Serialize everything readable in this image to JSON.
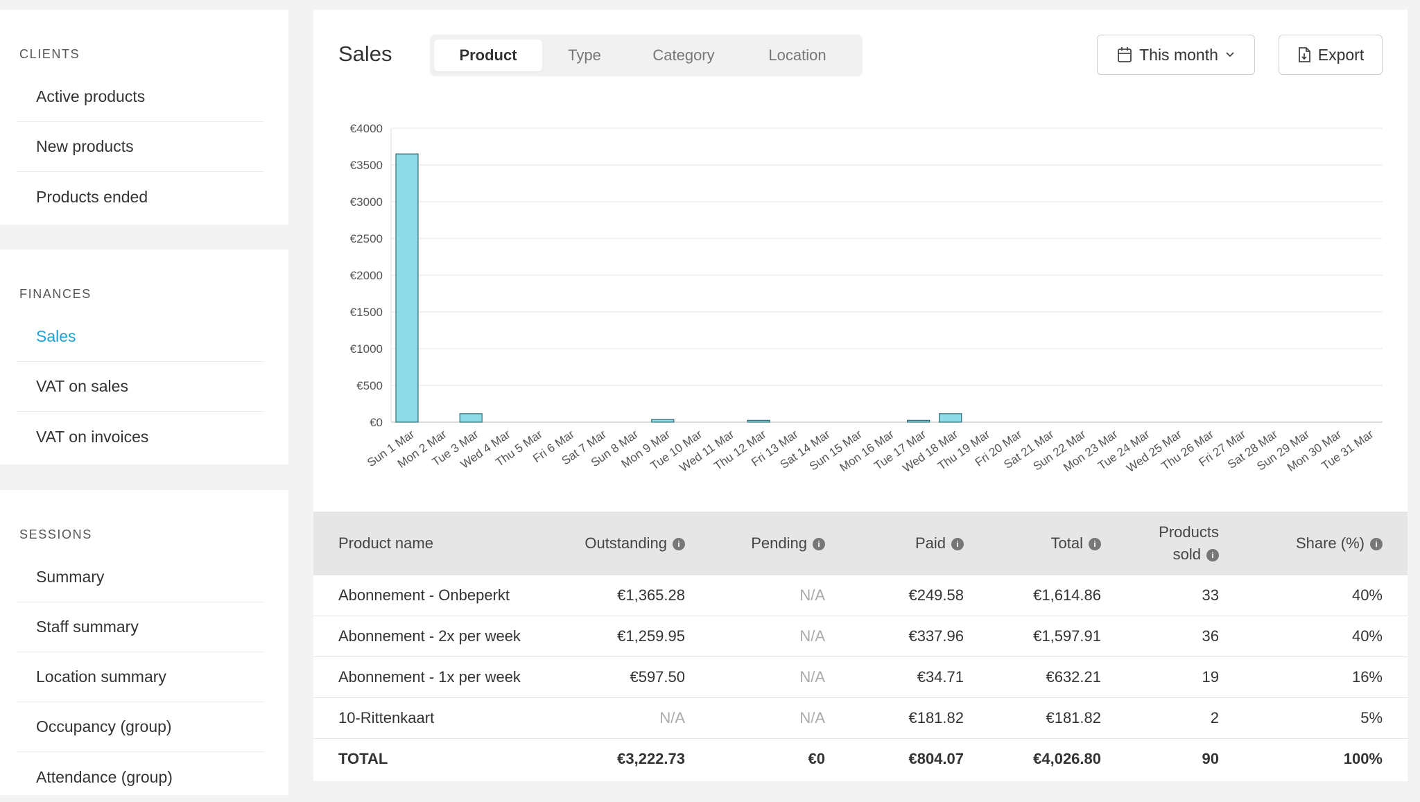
{
  "sidebar": {
    "clients": {
      "title": "CLIENTS",
      "items": [
        {
          "label": "Active products"
        },
        {
          "label": "New products"
        },
        {
          "label": "Products ended"
        }
      ]
    },
    "finances": {
      "title": "FINANCES",
      "items": [
        {
          "label": "Sales",
          "active": true
        },
        {
          "label": "VAT on sales"
        },
        {
          "label": "VAT on invoices"
        }
      ]
    },
    "sessions": {
      "title": "SESSIONS",
      "items": [
        {
          "label": "Summary"
        },
        {
          "label": "Staff summary"
        },
        {
          "label": "Location summary"
        },
        {
          "label": "Occupancy (group)"
        },
        {
          "label": "Attendance (group)"
        }
      ]
    }
  },
  "header": {
    "title": "Sales",
    "tabs": [
      {
        "label": "Product",
        "active": true
      },
      {
        "label": "Type"
      },
      {
        "label": "Category"
      },
      {
        "label": "Location"
      }
    ],
    "period_button": {
      "label": "This month",
      "icon": "calendar-icon",
      "caret": "chevron-down-icon"
    },
    "export_button": {
      "label": "Export",
      "icon": "file-download-icon"
    }
  },
  "colors": {
    "accent": "#1aa3d9",
    "bar_fill": "#8fdbe8",
    "bar_stroke": "#2b6d78"
  },
  "chart_data": {
    "type": "bar",
    "title": "",
    "xlabel": "",
    "ylabel": "",
    "ylim": [
      0,
      4000
    ],
    "yticks": [
      "€0",
      "€500",
      "€1000",
      "€1500",
      "€2000",
      "€2500",
      "€3000",
      "€3500",
      "€4000"
    ],
    "grid": true,
    "categories": [
      "Sun 1 Mar",
      "Mon 2 Mar",
      "Tue 3 Mar",
      "Wed 4 Mar",
      "Thu 5 Mar",
      "Fri 6 Mar",
      "Sat 7 Mar",
      "Sun 8 Mar",
      "Mon 9 Mar",
      "Tue 10 Mar",
      "Wed 11 Mar",
      "Thu 12 Mar",
      "Fri 13 Mar",
      "Sat 14 Mar",
      "Sun 15 Mar",
      "Mon 16 Mar",
      "Tue 17 Mar",
      "Wed 18 Mar",
      "Thu 19 Mar",
      "Fri 20 Mar",
      "Sat 21 Mar",
      "Sun 22 Mar",
      "Mon 23 Mar",
      "Tue 24 Mar",
      "Wed 25 Mar",
      "Thu 26 Mar",
      "Fri 27 Mar",
      "Sat 28 Mar",
      "Sun 29 Mar",
      "Mon 30 Mar",
      "Tue 31 Mar"
    ],
    "values": [
      3650,
      0,
      115,
      0,
      0,
      0,
      0,
      0,
      35,
      0,
      0,
      25,
      0,
      0,
      0,
      0,
      25,
      115,
      0,
      0,
      0,
      0,
      0,
      0,
      0,
      0,
      0,
      0,
      0,
      0,
      0
    ]
  },
  "table": {
    "headers": [
      {
        "label": "Product name",
        "info": false
      },
      {
        "label": "Outstanding",
        "info": true
      },
      {
        "label": "Pending",
        "info": true
      },
      {
        "label": "Paid",
        "info": true
      },
      {
        "label": "Total",
        "info": true
      },
      {
        "label": "Products",
        "label2": "sold",
        "info": true
      },
      {
        "label": "Share (%)",
        "info": true
      }
    ],
    "rows": [
      [
        "Abonnement - Onbeperkt",
        "€1,365.28",
        "N/A",
        "€249.58",
        "€1,614.86",
        "33",
        "40%"
      ],
      [
        "Abonnement - 2x per week",
        "€1,259.95",
        "N/A",
        "€337.96",
        "€1,597.91",
        "36",
        "40%"
      ],
      [
        "Abonnement - 1x per week",
        "€597.50",
        "N/A",
        "€34.71",
        "€632.21",
        "19",
        "16%"
      ],
      [
        "10-Rittenkaart",
        "N/A",
        "N/A",
        "€181.82",
        "€181.82",
        "2",
        "5%"
      ]
    ],
    "total": [
      "TOTAL",
      "€3,222.73",
      "€0",
      "€804.07",
      "€4,026.80",
      "90",
      "100%"
    ]
  }
}
